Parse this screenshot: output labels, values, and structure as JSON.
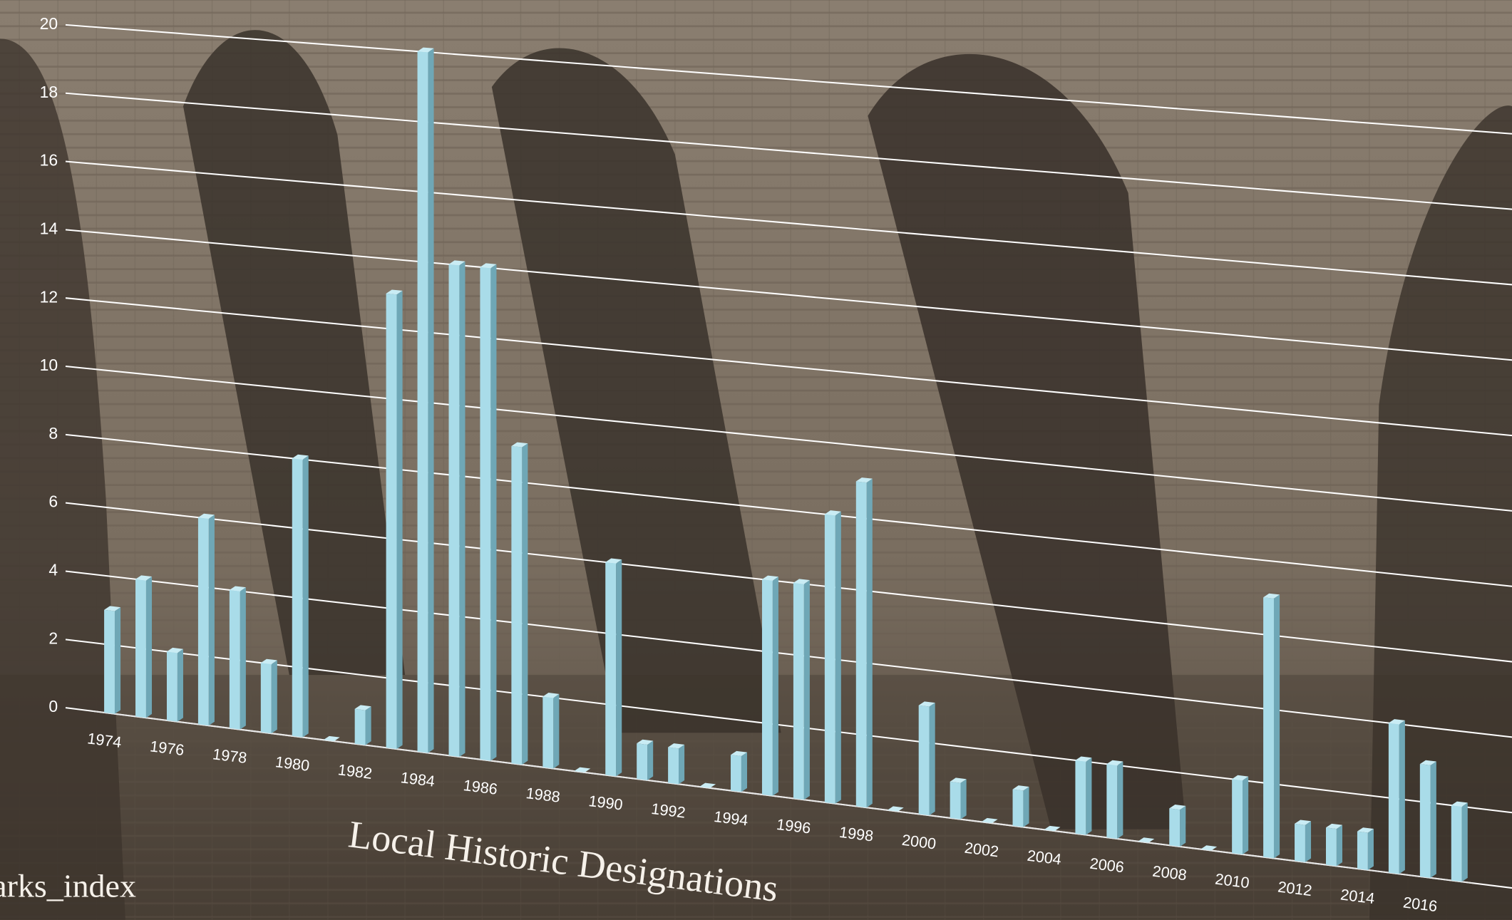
{
  "chart_data": {
    "type": "bar3d",
    "title": "Local Historic Designations",
    "footnote": "arks_index",
    "categories": [
      "1974",
      null,
      "1976",
      null,
      "1978",
      null,
      "1980",
      null,
      "1982",
      null,
      "1984",
      null,
      "1986",
      null,
      "1988",
      null,
      "1990",
      null,
      "1992",
      null,
      "1994",
      null,
      "1996",
      null,
      "1998",
      null,
      "2000",
      null,
      "2002",
      null,
      "2004",
      null,
      "2006",
      null,
      "2008",
      null,
      "2010",
      null,
      "2012",
      null,
      "2014",
      null,
      "2016",
      null
    ],
    "values": [
      3,
      4,
      2,
      6,
      4,
      2,
      8,
      0,
      1,
      13,
      20,
      14,
      14,
      9,
      2,
      0,
      6,
      1,
      1,
      0,
      1,
      6,
      6,
      8,
      9,
      0,
      3,
      1,
      0,
      1,
      0,
      2,
      2,
      0,
      1,
      0,
      2,
      7,
      1,
      1,
      1,
      4,
      3,
      2
    ],
    "color": "#a9dce9",
    "ylim": [
      0,
      20
    ],
    "yticks": [
      0,
      2,
      4,
      6,
      8,
      10,
      12,
      14,
      16,
      18,
      20
    ],
    "grid": true
  }
}
